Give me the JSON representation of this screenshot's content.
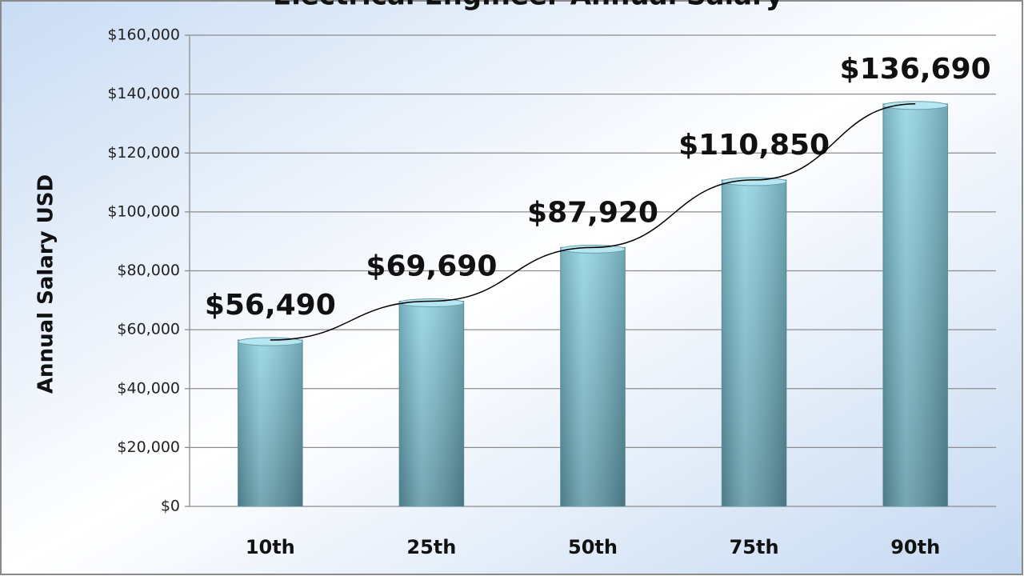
{
  "chart_data": {
    "type": "bar",
    "title": "Electrical Engineer Annual Salary",
    "y_label": "Annual Salary USD",
    "categories": [
      "10th",
      "25th",
      "50th",
      "75th",
      "90th"
    ],
    "values": [
      56490,
      69690,
      87920,
      110850,
      136690
    ],
    "value_labels": [
      "$56,490",
      "$69,690",
      "$87,920",
      "$110,850",
      "$136,690"
    ],
    "color": "#7ec3d3",
    "ylim": [
      0,
      160000
    ],
    "yticks": [
      {
        "value": 0,
        "label": "$0"
      },
      {
        "value": 20000,
        "label": "$20,000"
      },
      {
        "value": 40000,
        "label": "$40,000"
      },
      {
        "value": 60000,
        "label": "$60,000"
      },
      {
        "value": 80000,
        "label": "$80,000"
      },
      {
        "value": 100000,
        "label": "$100,000"
      },
      {
        "value": 120000,
        "label": "$120,000"
      },
      {
        "value": 140000,
        "label": "$140,000"
      },
      {
        "value": 160000,
        "label": "$160,000"
      }
    ],
    "grid": true,
    "trendline": true
  }
}
